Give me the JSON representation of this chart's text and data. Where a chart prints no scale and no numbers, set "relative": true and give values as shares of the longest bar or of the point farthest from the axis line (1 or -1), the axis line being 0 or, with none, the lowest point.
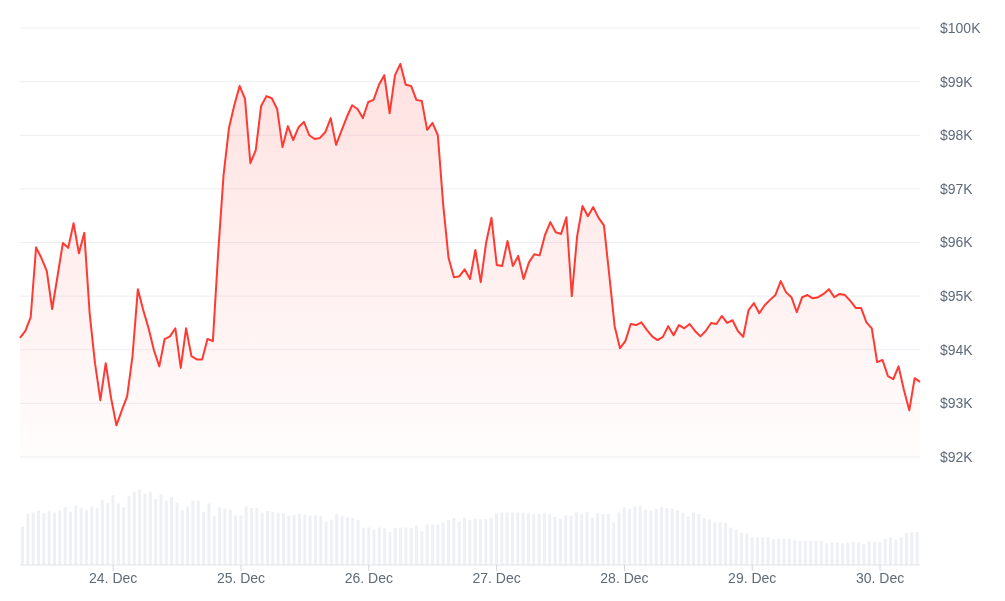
{
  "chart_data": [
    {
      "type": "area",
      "color": "#ff3a33",
      "grid": "y",
      "tick_labels": "y",
      "ylim": [
        92,
        100
      ],
      "yticks": [
        {
          "value": 92,
          "label": "$92K"
        },
        {
          "value": 93,
          "label": "$93K"
        },
        {
          "value": 94,
          "label": "$94K"
        },
        {
          "value": 95,
          "label": "$95K"
        },
        {
          "value": 96,
          "label": "$96K"
        },
        {
          "value": 97,
          "label": "$97K"
        },
        {
          "value": 98,
          "label": "$98K"
        },
        {
          "value": 99,
          "label": "$99K"
        },
        {
          "value": 100,
          "label": "$100K"
        }
      ],
      "categories": [
        null,
        null,
        null,
        null,
        null,
        null,
        null,
        null,
        null,
        null,
        null,
        null,
        null,
        null,
        null,
        null,
        null,
        null,
        null,
        null,
        null,
        null,
        null,
        null,
        null,
        null,
        null,
        null,
        null,
        null,
        null,
        null,
        null,
        null,
        null,
        null,
        null,
        null,
        null,
        null,
        null,
        null,
        null,
        null,
        null,
        null,
        null,
        null,
        null,
        null,
        null,
        null,
        null,
        null,
        null,
        null,
        null,
        null,
        null,
        null,
        null,
        null,
        null,
        null,
        null,
        null,
        null,
        null,
        null,
        null,
        null,
        null,
        null,
        null,
        null,
        null,
        null,
        null,
        null,
        null,
        null,
        null,
        null,
        null,
        null,
        null,
        null,
        null,
        null,
        null,
        null,
        null,
        null,
        null,
        null,
        null,
        null,
        null,
        null,
        null,
        null,
        null,
        null,
        null,
        null,
        null,
        null,
        null,
        null,
        null,
        null,
        null,
        null,
        null,
        null,
        null,
        null,
        null,
        null,
        null,
        null,
        null,
        null,
        null,
        null,
        null,
        null,
        null,
        null,
        null,
        null,
        null,
        null,
        null,
        null,
        null,
        null,
        null,
        null,
        null,
        null,
        null,
        null,
        null,
        null,
        null,
        null,
        null,
        null,
        null,
        null,
        null,
        null,
        null,
        null,
        null,
        null,
        null,
        null,
        null,
        null,
        null,
        null,
        null,
        null,
        null,
        null,
        null,
        null
      ],
      "values": [
        94.22,
        94.35,
        94.61,
        95.91,
        95.71,
        95.47,
        94.76,
        95.37,
        95.99,
        95.9,
        96.36,
        95.8,
        96.18,
        94.68,
        93.75,
        93.06,
        93.75,
        93.1,
        92.59,
        92.87,
        93.13,
        93.88,
        95.13,
        94.74,
        94.4,
        93.99,
        93.69,
        94.2,
        94.25,
        94.4,
        93.66,
        94.4,
        93.88,
        93.82,
        93.82,
        94.2,
        94.16,
        95.82,
        97.26,
        98.13,
        98.56,
        98.92,
        98.68,
        97.48,
        97.72,
        98.54,
        98.73,
        98.69,
        98.49,
        97.78,
        98.17,
        97.91,
        98.15,
        98.25,
        98.0,
        97.93,
        97.95,
        98.06,
        98.32,
        97.82,
        98.08,
        98.34,
        98.56,
        98.49,
        98.32,
        98.62,
        98.66,
        98.94,
        99.12,
        98.41,
        99.12,
        99.33,
        98.94,
        98.92,
        98.66,
        98.64,
        98.1,
        98.23,
        98.0,
        96.7,
        95.71,
        95.35,
        95.37,
        95.5,
        95.32,
        95.86,
        95.26,
        95.99,
        96.46,
        95.58,
        95.56,
        96.03,
        95.56,
        95.75,
        95.32,
        95.63,
        95.78,
        95.76,
        96.14,
        96.38,
        96.19,
        96.16,
        96.47,
        95.0,
        96.12,
        96.68,
        96.49,
        96.66,
        96.46,
        96.32,
        95.39,
        94.44,
        94.03,
        94.16,
        94.48,
        94.46,
        94.51,
        94.37,
        94.25,
        94.18,
        94.24,
        94.44,
        94.27,
        94.46,
        94.4,
        94.48,
        94.35,
        94.25,
        94.35,
        94.5,
        94.48,
        94.63,
        94.5,
        94.55,
        94.35,
        94.24,
        94.74,
        94.87,
        94.68,
        94.83,
        94.93,
        95.02,
        95.28,
        95.07,
        94.98,
        94.7,
        94.98,
        95.02,
        94.96,
        94.98,
        95.04,
        95.13,
        94.98,
        95.04,
        95.02,
        94.91,
        94.78,
        94.78,
        94.51,
        94.4,
        93.77,
        93.81,
        93.51,
        93.45,
        93.69,
        93.25,
        92.87,
        93.47,
        93.4
      ]
    },
    {
      "type": "bar",
      "relative": true,
      "color": "#eef0f4",
      "tick_labels": "x",
      "categories": [
        null,
        null,
        null,
        null,
        null,
        null,
        null,
        null,
        null,
        null,
        null,
        null,
        null,
        null,
        null,
        null,
        null,
        "24. Dec",
        null,
        null,
        null,
        null,
        null,
        null,
        null,
        null,
        null,
        null,
        null,
        null,
        null,
        null,
        null,
        null,
        null,
        null,
        null,
        null,
        null,
        null,
        null,
        "25. Dec",
        null,
        null,
        null,
        null,
        null,
        null,
        null,
        null,
        null,
        null,
        null,
        null,
        null,
        null,
        null,
        null,
        null,
        null,
        null,
        null,
        null,
        null,
        null,
        "26. Dec",
        null,
        null,
        null,
        null,
        null,
        null,
        null,
        null,
        null,
        null,
        null,
        null,
        null,
        null,
        null,
        null,
        null,
        null,
        null,
        null,
        null,
        null,
        null,
        "27. Dec",
        null,
        null,
        null,
        null,
        null,
        null,
        null,
        null,
        null,
        null,
        null,
        null,
        null,
        null,
        null,
        null,
        null,
        null,
        null,
        null,
        null,
        null,
        null,
        "28. Dec",
        null,
        null,
        null,
        null,
        null,
        null,
        null,
        null,
        null,
        null,
        null,
        null,
        null,
        null,
        null,
        null,
        null,
        null,
        null,
        null,
        null,
        null,
        null,
        "29. Dec",
        null,
        null,
        null,
        null,
        null,
        null,
        null,
        null,
        null,
        null,
        null,
        null,
        null,
        null,
        null,
        null,
        null,
        null,
        null,
        null,
        null,
        null,
        null,
        "30. Dec",
        null,
        null,
        null,
        null,
        null,
        null,
        null
      ],
      "values": [
        0.51,
        0.68,
        0.7,
        0.72,
        0.69,
        0.72,
        0.7,
        0.73,
        0.77,
        0.71,
        0.79,
        0.76,
        0.73,
        0.78,
        0.76,
        0.87,
        0.83,
        0.93,
        0.82,
        0.77,
        0.92,
        0.97,
        1,
        0.95,
        0.97,
        0.88,
        0.94,
        0.86,
        0.91,
        0.83,
        0.73,
        0.78,
        0.86,
        0.86,
        0.71,
        0.82,
        0.65,
        0.77,
        0.75,
        0.74,
        0.66,
        0.66,
        0.78,
        0.76,
        0.76,
        0.7,
        0.72,
        0.71,
        0.7,
        0.69,
        0.66,
        0.67,
        0.68,
        0.67,
        0.66,
        0.66,
        0.65,
        0.58,
        0.6,
        0.68,
        0.65,
        0.64,
        0.63,
        0.6,
        0.5,
        0.5,
        0.47,
        0.5,
        0.49,
        0.44,
        0.49,
        0.5,
        0.5,
        0.49,
        0.53,
        0.45,
        0.54,
        0.54,
        0.54,
        0.57,
        0.6,
        0.63,
        0.58,
        0.63,
        0.6,
        0.62,
        0.61,
        0.61,
        0.63,
        0.69,
        0.7,
        0.7,
        0.7,
        0.7,
        0.7,
        0.69,
        0.68,
        0.68,
        0.69,
        0.68,
        0.64,
        0.62,
        0.66,
        0.66,
        0.7,
        0.68,
        0.71,
        0.63,
        0.69,
        0.68,
        0.68,
        0.57,
        0.7,
        0.77,
        0.75,
        0.78,
        0.79,
        0.74,
        0.73,
        0.75,
        0.77,
        0.76,
        0.75,
        0.73,
        0.7,
        0.65,
        0.7,
        0.68,
        0.63,
        0.61,
        0.57,
        0.57,
        0.56,
        0.5,
        0.47,
        0.43,
        0.42,
        0.37,
        0.37,
        0.37,
        0.37,
        0.35,
        0.35,
        0.35,
        0.35,
        0.33,
        0.32,
        0.32,
        0.32,
        0.32,
        0.32,
        0.29,
        0.3,
        0.3,
        0.29,
        0.3,
        0.31,
        0.3,
        0.28,
        0.32,
        0.31,
        0.31,
        0.35,
        0.37,
        0.34,
        0.37,
        0.43,
        0.44,
        0.44
      ]
    }
  ]
}
